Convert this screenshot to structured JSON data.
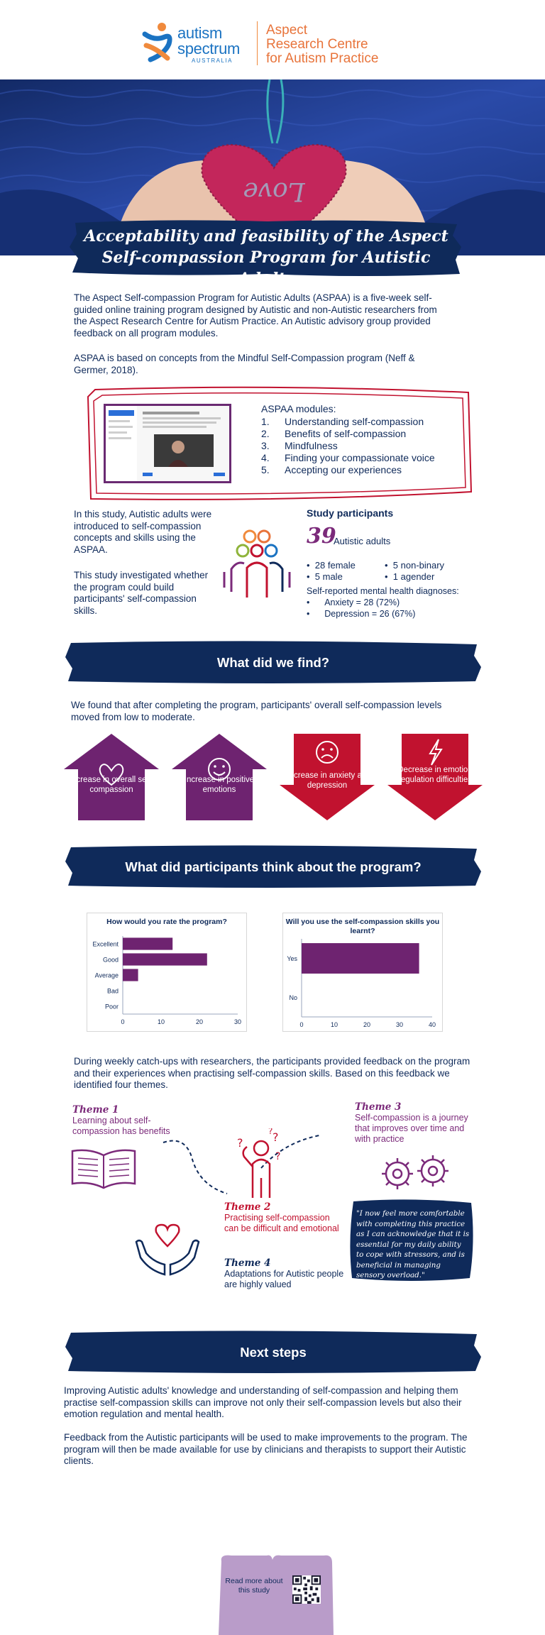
{
  "header": {
    "logo_left_line1": "autism",
    "logo_left_line2": "spectrum",
    "logo_left_line3": "AUSTRALIA",
    "logo_right_line1": "Aspect",
    "logo_right_line2": "Research Centre",
    "logo_right_line3": "for Autism Practice"
  },
  "hero": {
    "heart_text": "Love"
  },
  "title": {
    "line1": "Acceptability and feasibility of the Aspect",
    "line2": "Self-compassion Program for Autistic Adults"
  },
  "intro": {
    "p1": "The Aspect Self-compassion Program for Autistic Adults (ASPAA) is a five-week self-guided online training program designed by Autistic and non-Autistic researchers from the Aspect Research Centre for Autism Practice. An Autistic advisory group provided feedback on all program modules.",
    "p2": "ASPAA is based on concepts from the Mindful Self-Compassion program (Neff & Germer, 2018)."
  },
  "modules": {
    "title": "ASPAA modules:",
    "items": [
      {
        "num": "1.",
        "label": "Understanding self-compassion"
      },
      {
        "num": "2.",
        "label": "Benefits of self-compassion"
      },
      {
        "num": "3.",
        "label": "Mindfulness"
      },
      {
        "num": "4.",
        "label": "Finding your compassionate voice"
      },
      {
        "num": "5.",
        "label": "Accepting our experiences"
      }
    ]
  },
  "study": {
    "p1": "In this study, Autistic adults were introduced to self-compassion concepts and skills using the ASPAA.",
    "p2": "This study investigated whether the program could build participants' self-compassion skills."
  },
  "participants": {
    "title": "Study participants",
    "count": "39",
    "count_label": "Autistic adults",
    "breakdown_left": [
      "28 female",
      "5 male"
    ],
    "breakdown_right": [
      "5 non-binary",
      "1 agender"
    ],
    "diagnoses_title": "Self-reported mental health diagnoses:",
    "diagnoses": [
      "Anxiety = 28 (72%)",
      "Depression = 26 (67%)"
    ]
  },
  "find": {
    "heading": "What did we find?",
    "p": "We found that after completing the program, participants' overall self-compassion levels moved from low to moderate.",
    "outcomes": [
      {
        "label": "Increase in overall self-compassion",
        "direction": "up",
        "color": "#6e2370"
      },
      {
        "label": "Increase in positive emotions",
        "direction": "up",
        "color": "#6e2370"
      },
      {
        "label": "Decrease in anxiety and depression",
        "direction": "down",
        "color": "#c1122f"
      },
      {
        "label": "Decrease in emotion regulation difficulties",
        "direction": "down",
        "color": "#c1122f"
      }
    ]
  },
  "think": {
    "heading": "What did participants think about the program?"
  },
  "chart_data": [
    {
      "type": "bar",
      "orientation": "horizontal",
      "title": "How would you rate the program?",
      "categories": [
        "Excellent",
        "Good",
        "Average",
        "Bad",
        "Poor"
      ],
      "values": [
        13,
        22,
        4,
        0,
        0
      ],
      "xlim": [
        0,
        30
      ],
      "xticks": [
        "0",
        "10",
        "20",
        "30"
      ],
      "color": "#6e2370"
    },
    {
      "type": "bar",
      "orientation": "horizontal",
      "title": "Will you use the self-compassion skills you learnt?",
      "categories": [
        "Yes",
        "No"
      ],
      "values": [
        36,
        0
      ],
      "xlim": [
        0,
        40
      ],
      "xticks": [
        "0",
        "10",
        "20",
        "30",
        "40"
      ],
      "color": "#6e2370"
    }
  ],
  "feedback": {
    "p": "During weekly catch-ups with researchers, the participants provided feedback on the program and their experiences when practising self-compassion skills. Based on this feedback we identified four themes."
  },
  "themes": [
    {
      "title": "Theme 1",
      "desc": "Learning about self-compassion has benefits",
      "color": "#7b2a7a"
    },
    {
      "title": "Theme 2",
      "desc": "Practising self-compassion can be difficult and emotional",
      "color": "#c1122f"
    },
    {
      "title": "Theme 3",
      "desc": "Self-compassion is a journey that improves over time and with practice",
      "color": "#7b2a7a"
    },
    {
      "title": "Theme 4",
      "desc": "Adaptations for Autistic people are highly valued",
      "color": "#0f2a5a"
    }
  ],
  "quote": "\"I now feel more comfortable with completing this practice as I can acknowledge that it is essential for my daily ability to cope with stressors, and is beneficial in managing sensory overload.\"",
  "next": {
    "heading": "Next steps",
    "p1": "Improving Autistic adults' knowledge and understanding of self-compassion and helping them practise self-compassion skills can improve not only their self-compassion levels but also their emotion regulation and mental health.",
    "p2": "Feedback from the Autistic participants will be used to make improvements to the program. The program will then be made available for use by clinicians and therapists to support their Autistic clients."
  },
  "footer": {
    "qr_label": "Read more about this study"
  },
  "colors": {
    "navy": "#0f2a5a",
    "purple": "#6e2370",
    "red": "#c1122f",
    "orange": "#e8743b",
    "blue": "#1b73c2"
  }
}
